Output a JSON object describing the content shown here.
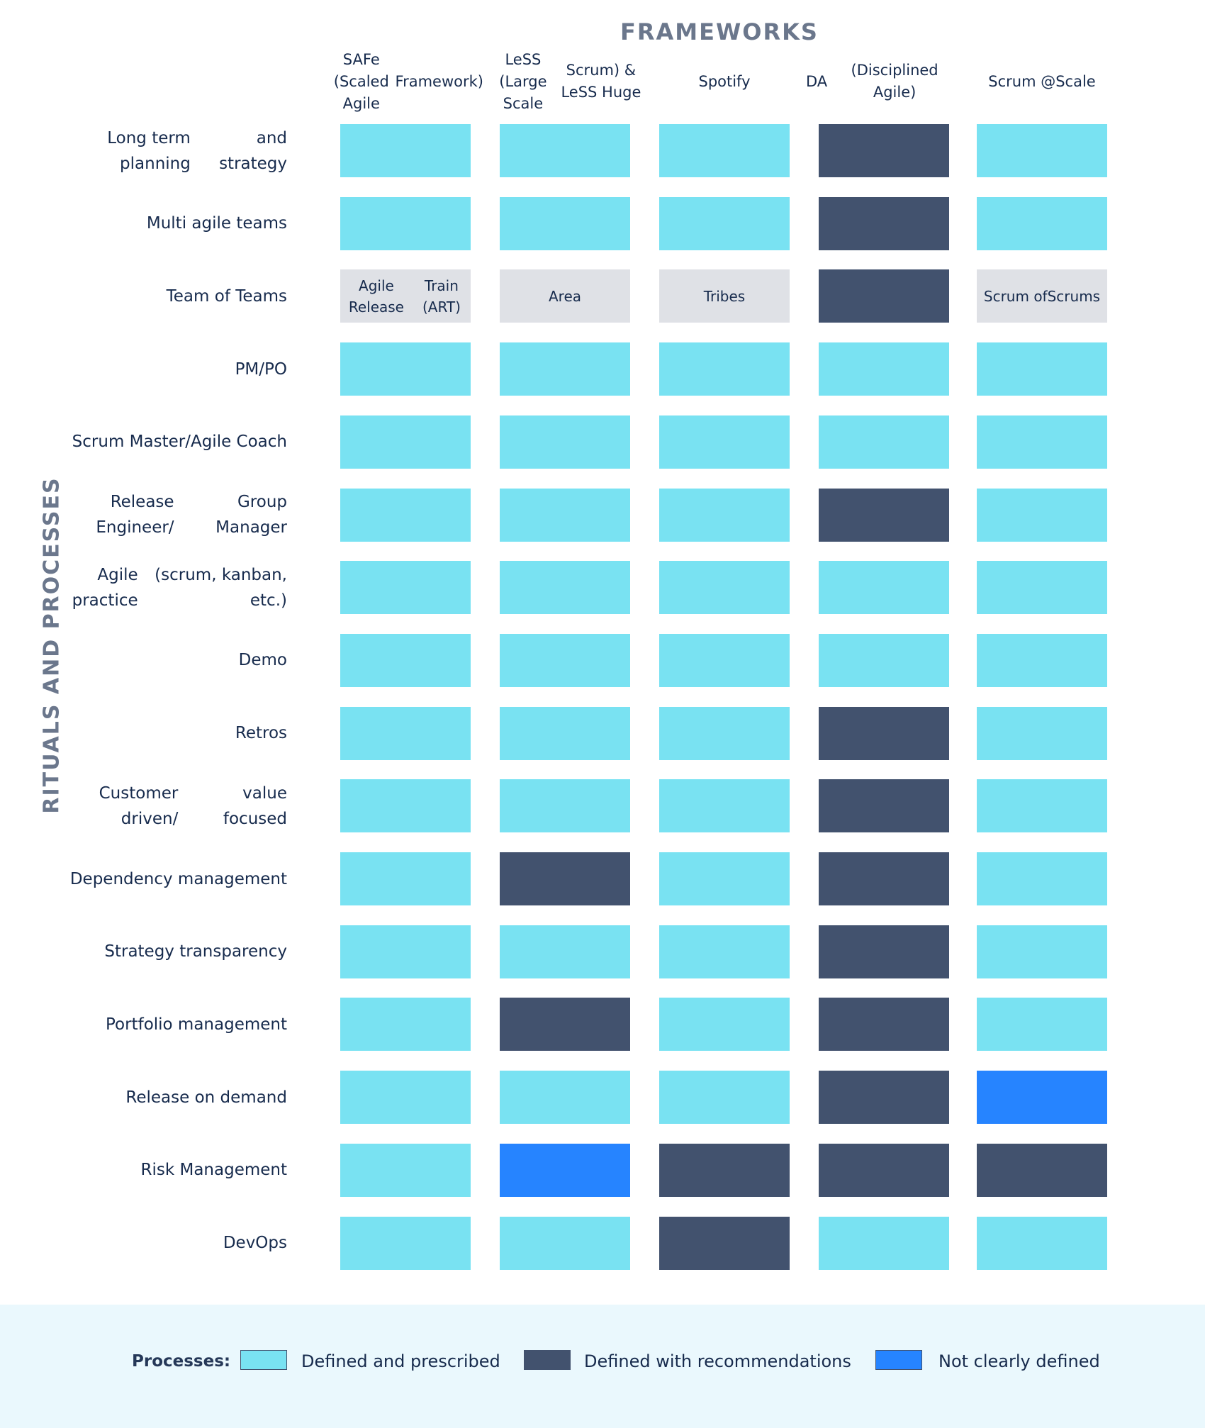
{
  "frameworks_title": "FRAMEWORKS",
  "side_title": "RITUALS AND PROCESSES",
  "colors": {
    "defined": "#79E2F2",
    "recommend": "#42526E",
    "unclear": "#2684FF",
    "named": "#DFE1E6"
  },
  "columns": [
    "SAFe (Scaled Agile Framework)",
    "LeSS (Large Scale Scrum) & LeSS Huge",
    "Spotify",
    "DA (Disciplined Agile)",
    "Scrum @ Scale"
  ],
  "rows": [
    {
      "label": "Long term planning and strategy",
      "cells": [
        {
          "s": "defined"
        },
        {
          "s": "defined"
        },
        {
          "s": "defined"
        },
        {
          "s": "recommend"
        },
        {
          "s": "defined"
        }
      ]
    },
    {
      "label": "Multi agile teams",
      "cells": [
        {
          "s": "defined"
        },
        {
          "s": "defined"
        },
        {
          "s": "defined"
        },
        {
          "s": "recommend"
        },
        {
          "s": "defined"
        }
      ]
    },
    {
      "label": "Team of Teams",
      "cells": [
        {
          "s": "named",
          "text": "Agile Release Train (ART)"
        },
        {
          "s": "named",
          "text": "Area"
        },
        {
          "s": "named",
          "text": "Tribes"
        },
        {
          "s": "recommend"
        },
        {
          "s": "named",
          "text": "Scrum of Scrums"
        }
      ]
    },
    {
      "label": "PM/PO",
      "cells": [
        {
          "s": "defined"
        },
        {
          "s": "defined"
        },
        {
          "s": "defined"
        },
        {
          "s": "defined"
        },
        {
          "s": "defined"
        }
      ]
    },
    {
      "label": "Scrum Master/ Agile Coach",
      "cells": [
        {
          "s": "defined"
        },
        {
          "s": "defined"
        },
        {
          "s": "defined"
        },
        {
          "s": "defined"
        },
        {
          "s": "defined"
        }
      ]
    },
    {
      "label": "Release Engineer/ Group Manager",
      "cells": [
        {
          "s": "defined"
        },
        {
          "s": "defined"
        },
        {
          "s": "defined"
        },
        {
          "s": "recommend"
        },
        {
          "s": "defined"
        }
      ]
    },
    {
      "label": "Agile practice (scrum, kanban, etc.)",
      "cells": [
        {
          "s": "defined"
        },
        {
          "s": "defined"
        },
        {
          "s": "defined"
        },
        {
          "s": "defined"
        },
        {
          "s": "defined"
        }
      ]
    },
    {
      "label": "Demo",
      "cells": [
        {
          "s": "defined"
        },
        {
          "s": "defined"
        },
        {
          "s": "defined"
        },
        {
          "s": "defined"
        },
        {
          "s": "defined"
        }
      ]
    },
    {
      "label": "Retros",
      "cells": [
        {
          "s": "defined"
        },
        {
          "s": "defined"
        },
        {
          "s": "defined"
        },
        {
          "s": "recommend"
        },
        {
          "s": "defined"
        }
      ]
    },
    {
      "label": "Customer driven/ value focused",
      "cells": [
        {
          "s": "defined"
        },
        {
          "s": "defined"
        },
        {
          "s": "defined"
        },
        {
          "s": "recommend"
        },
        {
          "s": "defined"
        }
      ]
    },
    {
      "label": "Dependency management",
      "cells": [
        {
          "s": "defined"
        },
        {
          "s": "recommend"
        },
        {
          "s": "defined"
        },
        {
          "s": "recommend"
        },
        {
          "s": "defined"
        }
      ]
    },
    {
      "label": "Strategy transparency",
      "cells": [
        {
          "s": "defined"
        },
        {
          "s": "defined"
        },
        {
          "s": "defined"
        },
        {
          "s": "recommend"
        },
        {
          "s": "defined"
        }
      ]
    },
    {
      "label": "Portfolio management",
      "cells": [
        {
          "s": "defined"
        },
        {
          "s": "recommend"
        },
        {
          "s": "defined"
        },
        {
          "s": "recommend"
        },
        {
          "s": "defined"
        }
      ]
    },
    {
      "label": "Release on demand",
      "cells": [
        {
          "s": "defined"
        },
        {
          "s": "defined"
        },
        {
          "s": "defined"
        },
        {
          "s": "recommend"
        },
        {
          "s": "unclear"
        }
      ]
    },
    {
      "label": "Risk Management",
      "cells": [
        {
          "s": "defined"
        },
        {
          "s": "unclear"
        },
        {
          "s": "recommend"
        },
        {
          "s": "recommend"
        },
        {
          "s": "recommend"
        }
      ]
    },
    {
      "label": "DevOps",
      "cells": [
        {
          "s": "defined"
        },
        {
          "s": "defined"
        },
        {
          "s": "recommend"
        },
        {
          "s": "defined"
        },
        {
          "s": "defined"
        }
      ]
    }
  ],
  "legend": {
    "title": "Processes:",
    "items": [
      {
        "key": "defined",
        "label": "Defined and prescribed"
      },
      {
        "key": "recommend",
        "label": "Defined with recommendations"
      },
      {
        "key": "unclear",
        "label": "Not clearly defined"
      }
    ]
  }
}
